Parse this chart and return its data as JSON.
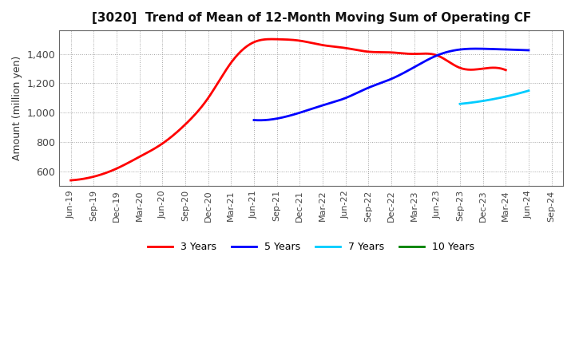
{
  "title": "[3020]  Trend of Mean of 12-Month Moving Sum of Operating CF",
  "ylabel": "Amount (million yen)",
  "background_color": "#ffffff",
  "plot_bg_color": "#ffffff",
  "grid_color": "#999999",
  "xlim_start": "Jun-19",
  "xlim_end": "Sep-24",
  "ylim": [
    500,
    1560
  ],
  "yticks": [
    600,
    800,
    1000,
    1200,
    1400
  ],
  "series": {
    "3 Years": {
      "color": "#ff0000",
      "data_x": [
        0,
        1,
        2,
        3,
        4,
        5,
        6,
        7,
        8,
        9,
        10,
        11,
        12,
        13,
        14,
        15,
        16,
        17,
        18,
        19
      ],
      "data_y": [
        540,
        565,
        620,
        700,
        790,
        920,
        1100,
        1340,
        1480,
        1500,
        1490,
        1460,
        1440,
        1415,
        1410,
        1400,
        1390,
        1305,
        1300,
        1290
      ]
    },
    "5 Years": {
      "color": "#0000ff",
      "data_x": [
        8,
        9,
        10,
        11,
        12,
        13,
        14,
        15,
        16,
        17,
        18,
        19,
        20
      ],
      "data_y": [
        950,
        960,
        1000,
        1050,
        1100,
        1170,
        1230,
        1310,
        1390,
        1430,
        1435,
        1430,
        1425
      ]
    },
    "7 Years": {
      "color": "#00ccff",
      "data_x": [
        17,
        18,
        19,
        20
      ],
      "data_y": [
        1060,
        1080,
        1110,
        1150
      ]
    },
    "10 Years": {
      "color": "#008000",
      "data_x": [],
      "data_y": []
    }
  },
  "xtick_labels": [
    "Jun-19",
    "Sep-19",
    "Dec-19",
    "Mar-20",
    "Jun-20",
    "Sep-20",
    "Dec-20",
    "Mar-21",
    "Jun-21",
    "Sep-21",
    "Dec-21",
    "Mar-22",
    "Jun-22",
    "Sep-22",
    "Dec-22",
    "Mar-23",
    "Jun-23",
    "Sep-23",
    "Dec-23",
    "Mar-24",
    "Jun-24",
    "Sep-24"
  ],
  "legend_entries": [
    "3 Years",
    "5 Years",
    "7 Years",
    "10 Years"
  ],
  "legend_colors": [
    "#ff0000",
    "#0000ff",
    "#00ccff",
    "#008000"
  ]
}
